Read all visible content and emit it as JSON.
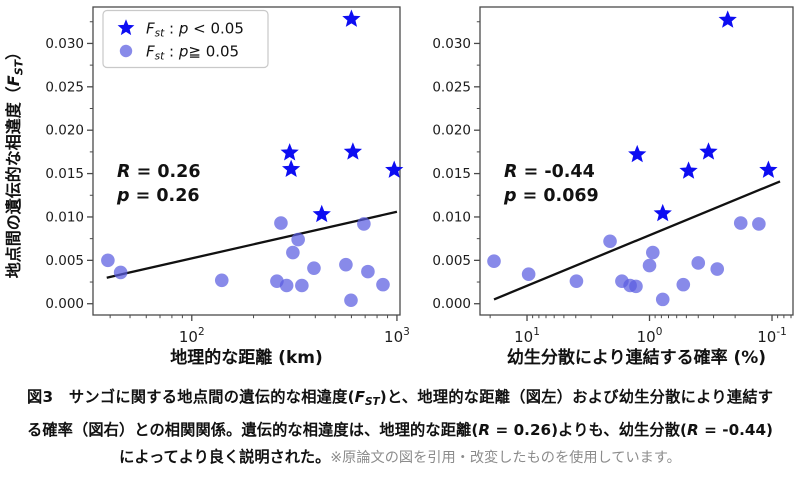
{
  "page": {
    "background": "#ffffff"
  },
  "figure": {
    "ylabel": {
      "text_before": "地点間の遺伝的な相違度（",
      "var": "F",
      "sub": "ST",
      "text_after": "）"
    },
    "legend": {
      "items": [
        {
          "marker": "star",
          "var": "F",
          "sub": "st",
          "mid": " : ",
          "pvar": "p",
          "rest": " < 0.05",
          "display": "Fst : p < 0.05"
        },
        {
          "marker": "circle",
          "var": "F",
          "sub": "st",
          "mid": " : ",
          "pvar": "p",
          "rest": "≧ 0.05",
          "display": "Fst : p ≧ 0.05"
        }
      ]
    },
    "colors": {
      "star": "#0d0df2",
      "circle": "#5a5de0",
      "circle_opacity": 0.72,
      "trend_line": "#111111",
      "axis": "#4a4a4a",
      "tick_label": "#1c1c1c",
      "legend_border": "#c9c9c9",
      "caption_text": "#111111",
      "caption_note": "#8c8c8c"
    }
  },
  "chart_data": [
    {
      "id": "left",
      "type": "scatter",
      "title": "",
      "xlabel": "地理的な距離 (km)",
      "ylabel": "地点間の遺伝的な相違度（FST）",
      "xscale": "log",
      "xlim": [
        33,
        1035
      ],
      "xticks": [
        {
          "exp": 2
        },
        {
          "exp": 3
        }
      ],
      "ylim": [
        -0.0013,
        0.0342
      ],
      "yticks": [
        0.0,
        0.005,
        0.01,
        0.015,
        0.02,
        0.025,
        0.03
      ],
      "grid": false,
      "legend": true,
      "legend_position": "upper left",
      "correlation": {
        "R": 0.26,
        "p": 0.26
      },
      "annotation": {
        "x": 117,
        "lines": [
          {
            "var": "R",
            "rest": " = 0.26"
          },
          {
            "var": "p",
            "rest": " = 0.26"
          }
        ]
      },
      "trendline": {
        "x1": 38.5,
        "y1": 0.003,
        "x2": 1000,
        "y2": 0.0106
      },
      "series": [
        {
          "name": "Fst : p < 0.05",
          "marker": "star",
          "points": [
            [
              600,
              0.0328
            ],
            [
              300,
              0.0174
            ],
            [
              305,
              0.0155
            ],
            [
              610,
              0.0175
            ],
            [
              970,
              0.0154
            ],
            [
              430,
              0.0103
            ]
          ]
        },
        {
          "name": "Fst : p ≧ 0.05",
          "marker": "circle",
          "points": [
            [
              39,
              0.005
            ],
            [
              45,
              0.0036
            ],
            [
              140,
              0.0027
            ],
            [
              272,
              0.0093
            ],
            [
              330,
              0.0074
            ],
            [
              311,
              0.0059
            ],
            [
              394,
              0.0041
            ],
            [
              564,
              0.0045
            ],
            [
              722,
              0.0037
            ],
            [
              260,
              0.0026
            ],
            [
              290,
              0.0021
            ],
            [
              344,
              0.0021
            ],
            [
              855,
              0.0022
            ],
            [
              597,
              0.0004
            ],
            [
              690,
              0.0092
            ]
          ]
        }
      ]
    },
    {
      "id": "right",
      "type": "scatter",
      "title": "",
      "xlabel": "幼生分散により連結する確率 (%)",
      "ylabel": "地点間の遺伝的な相違度（FST）",
      "xscale": "log",
      "x_reversed": true,
      "xlim": [
        24.2,
        0.0674
      ],
      "xticks": [
        {
          "exp": 1
        },
        {
          "exp": 0
        },
        {
          "exp": -1
        }
      ],
      "ylim": [
        -0.0013,
        0.0342
      ],
      "yticks": [
        0.0,
        0.005,
        0.01,
        0.015,
        0.02,
        0.025,
        0.03
      ],
      "grid": false,
      "legend": false,
      "correlation": {
        "R": -0.44,
        "p": 0.069
      },
      "annotation": {
        "x": 504,
        "lines": [
          {
            "var": "R",
            "rest": " = -0.44"
          },
          {
            "var": "p",
            "rest": " = 0.069"
          }
        ]
      },
      "trendline": {
        "x1": 18.6,
        "y1": 0.0005,
        "x2": 0.086,
        "y2": 0.0141
      },
      "series": [
        {
          "name": "Fst : p < 0.05",
          "marker": "star",
          "points": [
            [
              0.23,
              0.0327
            ],
            [
              1.26,
              0.0172
            ],
            [
              0.48,
              0.0153
            ],
            [
              0.33,
              0.0175
            ],
            [
              0.107,
              0.0154
            ],
            [
              0.78,
              0.0104
            ]
          ]
        },
        {
          "name": "Fst : p ≧ 0.05",
          "marker": "circle",
          "points": [
            [
              18.6,
              0.0049
            ],
            [
              9.7,
              0.0034
            ],
            [
              3.95,
              0.0026
            ],
            [
              2.1,
              0.0072
            ],
            [
              1.68,
              0.0026
            ],
            [
              1.44,
              0.0021
            ],
            [
              1.29,
              0.002
            ],
            [
              0.94,
              0.0059
            ],
            [
              1.0,
              0.0044
            ],
            [
              0.78,
              0.0005
            ],
            [
              0.53,
              0.0022
            ],
            [
              0.4,
              0.0047
            ],
            [
              0.28,
              0.004
            ],
            [
              0.18,
              0.0093
            ],
            [
              0.128,
              0.0092
            ]
          ]
        }
      ]
    }
  ],
  "caption": {
    "segments": [
      {
        "style": "bold",
        "text": "図3　サンゴに関する地点間の遺伝的な相違度("
      },
      {
        "style": "bold-italic",
        "text": "F"
      },
      {
        "style": "bold-italic-sub",
        "text": "ST"
      },
      {
        "style": "bold",
        "text": ")と、地理的な距離（図左）および幼生分散により連結する確率（図右）との相関関係。遺伝的な相違度は、地理的な距離("
      },
      {
        "style": "bold-italic",
        "text": "R"
      },
      {
        "style": "bold",
        "text": " = 0.26)よりも、幼生分散("
      },
      {
        "style": "bold-italic",
        "text": "R"
      },
      {
        "style": "bold",
        "text": " = -0.44)によってより良く説明された。"
      },
      {
        "style": "note",
        "text": "※原論文の図を引用・改変したものを使用しています。"
      }
    ]
  }
}
